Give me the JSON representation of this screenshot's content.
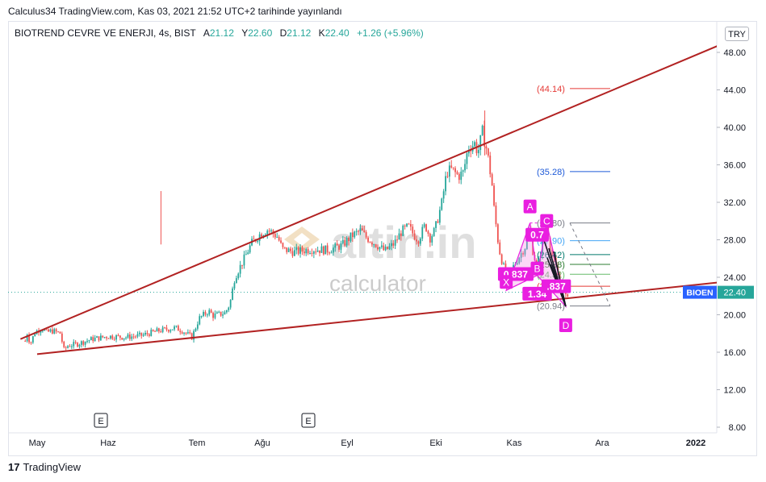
{
  "header": {
    "publish_line": "Calculus34 TradingView.com, Kas 03, 2021 21:52 UTC+2 tarihinde yayınlandı",
    "currency": "TRY"
  },
  "legend": {
    "symbol": "BIOTREND CEVRE VE ENERJI, 4s, BIST",
    "open_label": "A",
    "open": "21.12",
    "high_label": "Y",
    "high": "22.60",
    "low_label": "D",
    "low": "21.12",
    "close_label": "K",
    "close": "22.40",
    "change": "+1.26 (+5.96%)"
  },
  "watermark": {
    "brand": "altin.in",
    "sub": "calculator"
  },
  "footer": {
    "logo_text": "TradingView"
  },
  "colors": {
    "up": "#26a69a",
    "down": "#ef5350",
    "trendline": "#b22222",
    "pattern": "#e91ee0",
    "pattern_fill": "#f48fe6",
    "badge_bg": "#2962ff"
  },
  "chart_data": {
    "type": "candlestick",
    "x_axis": {
      "labels": [
        "May",
        "Haz",
        "Tem",
        "Ağu",
        "Eyl",
        "Eki",
        "Kas",
        "Ara",
        "2022"
      ],
      "event_markers": [
        "E",
        "E"
      ]
    },
    "y_axis": {
      "ticks": [
        8.0,
        12.0,
        16.0,
        20.0,
        24.0,
        28.0,
        32.0,
        36.0,
        40.0,
        44.0,
        48.0
      ],
      "ylim": [
        7.0,
        49.5
      ]
    },
    "last_price": {
      "symbol": "BIOEN",
      "value": "22.40"
    },
    "price_path": [
      [
        "2021-04-26",
        17.2
      ],
      [
        "2021-04-27",
        18.2
      ],
      [
        "2021-04-28",
        16.8
      ],
      [
        "2021-04-30",
        18.1
      ],
      [
        "2021-05-03",
        18.6
      ],
      [
        "2021-05-05",
        18.1
      ],
      [
        "2021-05-07",
        18.3
      ],
      [
        "2021-05-11",
        18.0
      ],
      [
        "2021-05-12",
        16.2
      ],
      [
        "2021-05-14",
        16.7
      ],
      [
        "2021-05-18",
        16.9
      ],
      [
        "2021-05-24",
        17.4
      ],
      [
        "2021-05-31",
        17.7
      ],
      [
        "2021-06-07",
        17.6
      ],
      [
        "2021-06-14",
        17.8
      ],
      [
        "2021-06-21",
        18.3
      ],
      [
        "2021-06-28",
        18.6
      ],
      [
        "2021-07-01",
        18.3
      ],
      [
        "2021-07-05",
        17.6
      ],
      [
        "2021-07-08",
        19.6
      ],
      [
        "2021-07-12",
        20.4
      ],
      [
        "2021-07-14",
        19.9
      ],
      [
        "2021-07-19",
        20.2
      ],
      [
        "2021-07-21",
        21.2
      ],
      [
        "2021-07-23",
        24.0
      ],
      [
        "2021-07-27",
        26.0
      ],
      [
        "2021-07-30",
        27.6
      ],
      [
        "2021-08-03",
        28.7
      ],
      [
        "2021-08-06",
        29.1
      ],
      [
        "2021-08-10",
        28.3
      ],
      [
        "2021-08-12",
        27.0
      ],
      [
        "2021-08-17",
        26.7
      ],
      [
        "2021-08-24",
        27.0
      ],
      [
        "2021-08-31",
        26.9
      ],
      [
        "2021-09-06",
        27.4
      ],
      [
        "2021-09-10",
        28.4
      ],
      [
        "2021-09-14",
        29.0
      ],
      [
        "2021-09-16",
        28.3
      ],
      [
        "2021-09-21",
        27.4
      ],
      [
        "2021-09-24",
        26.8
      ],
      [
        "2021-09-28",
        27.6
      ],
      [
        "2021-10-01",
        28.9
      ],
      [
        "2021-10-04",
        29.4
      ],
      [
        "2021-10-06",
        28.6
      ],
      [
        "2021-10-08",
        28.0
      ],
      [
        "2021-10-11",
        29.6
      ],
      [
        "2021-10-13",
        28.2
      ],
      [
        "2021-10-15",
        29.0
      ],
      [
        "2021-10-18",
        32.0
      ],
      [
        "2021-10-20",
        35.2
      ],
      [
        "2021-10-22",
        35.5
      ],
      [
        "2021-10-25",
        34.8
      ],
      [
        "2021-10-27",
        35.2
      ],
      [
        "2021-10-29",
        37.8
      ],
      [
        "2021-11-01",
        38.3
      ],
      [
        "2021-11-02",
        37.2
      ],
      [
        "2021-11-04",
        39.5
      ],
      [
        "2021-11-06",
        37.4
      ],
      [
        "2021-11-08",
        34.0
      ],
      [
        "2021-11-09",
        31.0
      ],
      [
        "2021-11-11",
        27.0
      ],
      [
        "2021-11-13",
        25.0
      ],
      [
        "2021-11-15",
        24.2
      ],
      [
        "2021-11-18",
        25.6
      ],
      [
        "2021-11-22",
        27.3
      ],
      [
        "2021-11-24",
        29.4
      ],
      [
        "2021-11-25",
        27.0
      ],
      [
        "2021-11-27",
        25.0
      ],
      [
        "2021-11-29",
        27.4
      ],
      [
        "2021-12-01",
        29.6
      ],
      [
        "2021-12-03",
        26.6
      ],
      [
        "2021-12-06",
        24.0
      ],
      [
        "2021-12-08",
        22.8
      ],
      [
        "2021-12-09",
        21.8
      ],
      [
        "2021-12-10",
        22.4
      ]
    ],
    "trendlines": [
      {
        "name": "upper",
        "from": [
          "2021-04-24",
          17.4
        ],
        "to": [
          "2022-02-23",
          50.0
        ]
      },
      {
        "name": "lower",
        "from": [
          "2021-05-01",
          15.8
        ],
        "to": [
          "2022-03-15",
          24.3
        ]
      }
    ],
    "harmonic_pattern": {
      "points": [
        {
          "label": "X",
          "date": "2021-11-14",
          "price": 22.6
        },
        {
          "label": "A",
          "date": "2021-11-24",
          "price": 29.8
        },
        {
          "label": "B",
          "date": "2021-11-27",
          "price": 24.2
        },
        {
          "label": "C",
          "date": "2021-12-01",
          "price": 29.8
        },
        {
          "label": "D",
          "date": "2021-12-09",
          "price": 20.9
        }
      ],
      "ratios": [
        {
          "text": "0.837",
          "date": "2021-11-18",
          "price": 24.3
        },
        {
          "text": "0.7",
          "date": "2021-11-27",
          "price": 28.5
        },
        {
          "text": "1.34",
          "date": "2021-11-27",
          "price": 22.2
        },
        {
          "text": ".837",
          "date": "2021-12-05",
          "price": 23.0
        }
      ]
    },
    "projection_levels": [
      {
        "label": "(44.14)",
        "value": 44.14,
        "color": "#e53935"
      },
      {
        "label": "(35.28)",
        "value": 35.28,
        "color": "#1e5ad8"
      },
      {
        "label": "(29.80)",
        "value": 29.8,
        "color": "#787b86"
      },
      {
        "label": "(27.90)",
        "value": 27.9,
        "color": "#42a5f5"
      },
      {
        "label": "(26.42)",
        "value": 26.42,
        "color": "#00796b"
      },
      {
        "label": "(25.38)",
        "value": 25.38,
        "color": "#2e7d32"
      },
      {
        "label": "(24.32)",
        "value": 24.32,
        "color": "#66bb6a"
      },
      {
        "label": "(23.04)",
        "value": 23.04,
        "color": "#e53935"
      },
      {
        "label": "(20.94)",
        "value": 20.94,
        "color": "#787b86"
      }
    ]
  }
}
